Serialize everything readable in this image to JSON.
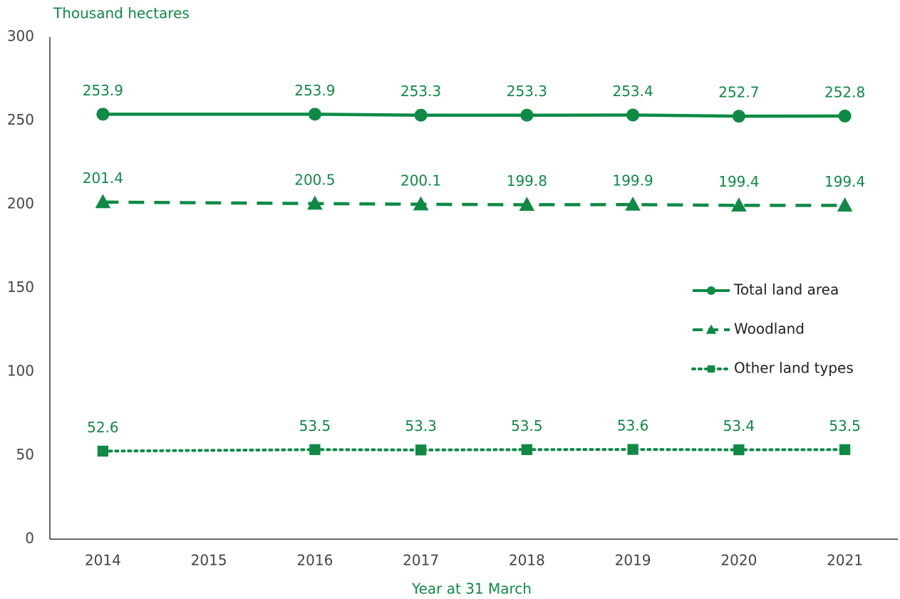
{
  "chart_data": {
    "type": "line",
    "y_label": "Thousand hectares",
    "x_label": "Year at 31 March",
    "x": [
      2014,
      2016,
      2017,
      2018,
      2019,
      2020,
      2021
    ],
    "xlim": [
      2013.5,
      2021.5
    ],
    "xticks": [
      2014,
      2015,
      2016,
      2017,
      2018,
      2019,
      2020,
      2021
    ],
    "ylim": [
      0,
      300
    ],
    "yticks": [
      0,
      50,
      100,
      150,
      200,
      250,
      300
    ],
    "grid": false,
    "legend": "right",
    "series": [
      {
        "name": "Total land area",
        "color": "#0e8a45",
        "line_style": "solid",
        "marker": "circle",
        "values": [
          253.9,
          253.9,
          253.3,
          253.3,
          253.4,
          252.7,
          252.8
        ]
      },
      {
        "name": "Woodland",
        "color": "#0e8a45",
        "line_style": "dashed",
        "marker": "triangle",
        "values": [
          201.4,
          200.5,
          200.1,
          199.8,
          199.9,
          199.4,
          199.4
        ]
      },
      {
        "name": "Other land types",
        "color": "#0e8a45",
        "line_style": "dotted",
        "marker": "square",
        "values": [
          52.6,
          53.5,
          53.3,
          53.5,
          53.6,
          53.4,
          53.5
        ]
      }
    ]
  }
}
